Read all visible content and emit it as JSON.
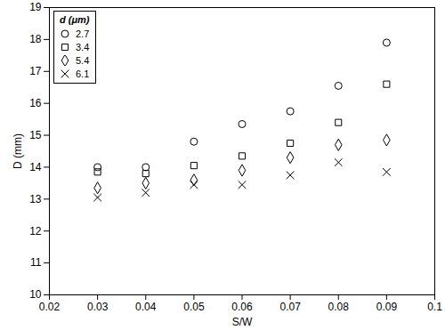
{
  "chart_data": {
    "type": "scatter",
    "x_label": "S/W",
    "y_label": "D (mm)",
    "legend_title": "d (μm)",
    "legend": "top-left",
    "grid": false,
    "x": [
      0.03,
      0.04,
      0.05,
      0.06,
      0.07,
      0.08,
      0.09
    ],
    "series": [
      {
        "name": "2.7",
        "color": "#000000",
        "marker": "circle",
        "values": [
          14.0,
          14.0,
          14.8,
          15.35,
          15.75,
          16.55,
          17.9
        ]
      },
      {
        "name": "3.4",
        "color": "#000000",
        "marker": "square",
        "values": [
          13.85,
          13.8,
          14.05,
          14.35,
          14.75,
          15.4,
          16.6
        ]
      },
      {
        "name": "5.4",
        "color": "#000000",
        "marker": "diamond",
        "values": [
          13.35,
          13.5,
          13.6,
          13.9,
          14.3,
          14.7,
          14.85
        ]
      },
      {
        "name": "6.1",
        "color": "#000000",
        "marker": "x",
        "values": [
          13.05,
          13.2,
          13.45,
          13.45,
          13.75,
          14.15,
          13.85
        ]
      }
    ],
    "xlim": [
      0.02,
      0.1
    ],
    "xticks": [
      0.02,
      0.03,
      0.04,
      0.05,
      0.06,
      0.07,
      0.08,
      0.09,
      0.1
    ],
    "ylim": [
      10,
      19
    ],
    "yticks": [
      10,
      11,
      12,
      13,
      14,
      15,
      16,
      17,
      18,
      19
    ]
  }
}
